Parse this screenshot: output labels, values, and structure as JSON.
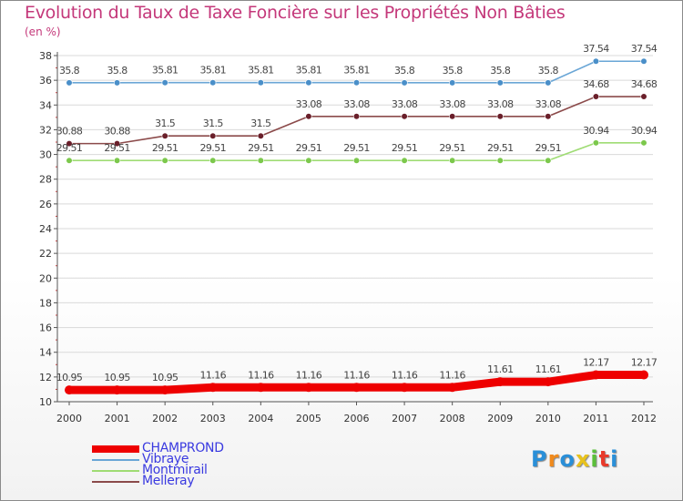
{
  "header": {
    "title": "Evolution du Taux de Taxe Foncière sur les Propriétés Non Bâties",
    "unit": "(en %)"
  },
  "chart_data": {
    "type": "line",
    "title": "Evolution du Taux de Taxe Foncière sur les Propriétés Non Bâties",
    "ylabel": "(en %)",
    "xlabel": "",
    "ylim": [
      10,
      38
    ],
    "yticks": [
      10,
      12,
      14,
      16,
      18,
      20,
      22,
      24,
      26,
      28,
      30,
      32,
      34,
      36,
      38
    ],
    "grid": "horizontal",
    "legend_position": "bottom-left",
    "categories": [
      "2000",
      "2001",
      "2002",
      "2003",
      "2004",
      "2005",
      "2006",
      "2007",
      "2008",
      "2009",
      "2010",
      "2011",
      "2012"
    ],
    "series": [
      {
        "name": "Vibraye",
        "color": "#6aa6d6",
        "marker": "#4a8fc9",
        "values": [
          35.8,
          35.8,
          35.81,
          35.81,
          35.81,
          35.81,
          35.81,
          35.8,
          35.8,
          35.8,
          35.8,
          37.54,
          37.54
        ],
        "labels": [
          "35.8",
          "35.8",
          "35.81",
          "35.81",
          "35.81",
          "35.81",
          "35.81",
          "35.8",
          "35.8",
          "35.8",
          "35.8",
          "37.54",
          "37.54"
        ]
      },
      {
        "name": "Melleray",
        "color": "#8b4a4a",
        "marker": "#6a1f2a",
        "values": [
          30.88,
          30.88,
          31.5,
          31.5,
          31.5,
          33.08,
          33.08,
          33.08,
          33.08,
          33.08,
          33.08,
          34.68,
          34.68
        ],
        "labels": [
          "30.88",
          "30.88",
          "31.5",
          "31.5",
          "31.5",
          "33.08",
          "33.08",
          "33.08",
          "33.08",
          "33.08",
          "33.08",
          "34.68",
          "34.68"
        ]
      },
      {
        "name": "Montmirail",
        "color": "#9fdc74",
        "marker": "#7cc84c",
        "values": [
          29.51,
          29.51,
          29.51,
          29.51,
          29.51,
          29.51,
          29.51,
          29.51,
          29.51,
          29.51,
          29.51,
          30.94,
          30.94
        ],
        "labels": [
          "29.51",
          "29.51",
          "29.51",
          "29.51",
          "29.51",
          "29.51",
          "29.51",
          "29.51",
          "29.51",
          "29.51",
          "29.51",
          "30.94",
          "30.94"
        ]
      },
      {
        "name": "CHAMPROND",
        "color": "#ee0000",
        "marker": "#ee0000",
        "values": [
          10.95,
          10.95,
          10.95,
          11.16,
          11.16,
          11.16,
          11.16,
          11.16,
          11.16,
          11.61,
          11.61,
          12.17,
          12.17
        ],
        "labels": [
          "10.95",
          "10.95",
          "10.95",
          "11.16",
          "11.16",
          "11.16",
          "11.16",
          "11.16",
          "11.16",
          "11.61",
          "11.61",
          "12.17",
          "12.17"
        ]
      }
    ]
  },
  "legend": {
    "items": [
      {
        "name": "CHAMPROND",
        "color": "#ee0000",
        "text_color": "#3a3ae0"
      },
      {
        "name": "Vibraye",
        "color": "#6aa6d6",
        "text_color": "#3a3ae0"
      },
      {
        "name": "Montmirail",
        "color": "#9fdc74",
        "text_color": "#3a3ae0"
      },
      {
        "name": "Melleray",
        "color": "#8b4a4a",
        "text_color": "#3a3ae0"
      }
    ]
  },
  "brand": {
    "letters": [
      "P",
      "r",
      "o",
      "x",
      "i",
      "t",
      "i"
    ],
    "colors": [
      "#2a8fd8",
      "#f08a1c",
      "#2a8fd8",
      "#e8c21c",
      "#5bbf3a",
      "#e83a2a",
      "#2a8fd8"
    ]
  }
}
